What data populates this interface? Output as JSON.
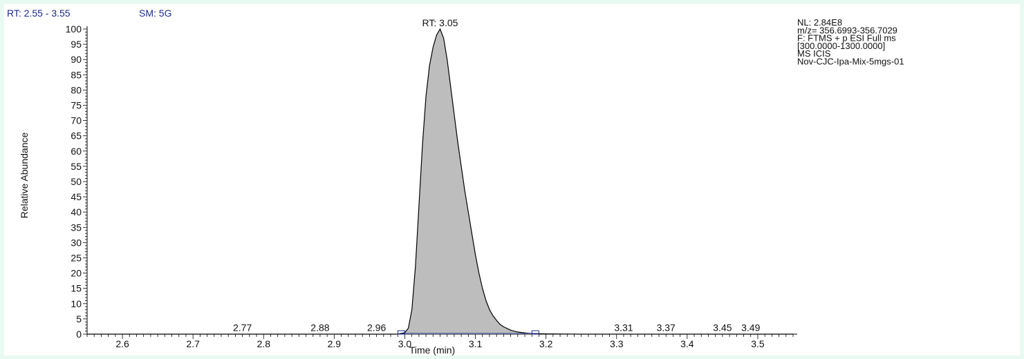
{
  "header": {
    "rt_range": "RT: 2.55 - 3.55",
    "smoothing": "SM: 5G"
  },
  "info": {
    "lines": [
      "NL: 2.84E8",
      "m/z= 356.6993-356.7029",
      "F: FTMS + p ESI Full ms",
      "[300.0000-1300.0000]",
      "MS  ICIS",
      "Nov-CJC-Ipa-Mix-5mgs-01"
    ]
  },
  "colors": {
    "peak_fill": "#bdbdbd",
    "trace": "#000000",
    "baseline_marker": "#1c2a8a",
    "background": "#e8faf2"
  },
  "chart_data": {
    "type": "area",
    "title": "",
    "xlabel": "Time (min)",
    "ylabel": "Relative Abundance",
    "xlim": [
      2.55,
      3.55
    ],
    "ylim": [
      0,
      100
    ],
    "x_ticks": [
      "2.6",
      "2.7",
      "2.8",
      "2.9",
      "3.0",
      "3.1",
      "3.2",
      "3.3",
      "3.4",
      "3.5"
    ],
    "y_ticks": [
      "0",
      "5",
      "10",
      "15",
      "20",
      "25",
      "30",
      "35",
      "40",
      "45",
      "50",
      "55",
      "60",
      "65",
      "70",
      "75",
      "80",
      "85",
      "90",
      "95",
      "100"
    ],
    "grid": false,
    "series": [
      {
        "values_x": [
          2.55,
          2.99,
          3.0,
          3.005,
          3.01,
          3.015,
          3.02,
          3.025,
          3.03,
          3.035,
          3.04,
          3.045,
          3.05,
          3.055,
          3.06,
          3.065,
          3.07,
          3.075,
          3.08,
          3.085,
          3.09,
          3.095,
          3.1,
          3.105,
          3.11,
          3.115,
          3.12,
          3.125,
          3.13,
          3.135,
          3.14,
          3.15,
          3.16,
          3.17,
          3.18,
          3.2,
          3.25,
          3.55
        ],
        "values_y": [
          0,
          0,
          0.5,
          2,
          8,
          22,
          42,
          62,
          78,
          88,
          94,
          98,
          100,
          97,
          90,
          81,
          72,
          63,
          55,
          47,
          40,
          33,
          26,
          20,
          15,
          11,
          8,
          6,
          4.5,
          3.2,
          2.4,
          1.3,
          0.7,
          0.4,
          0.2,
          0.1,
          0,
          0
        ]
      }
    ],
    "peak_labels": [
      {
        "x": 2.77,
        "y": 0.3,
        "text": "2.77"
      },
      {
        "x": 2.88,
        "y": 0.3,
        "text": "2.88"
      },
      {
        "x": 2.96,
        "y": 0.3,
        "text": "2.96"
      },
      {
        "x": 3.31,
        "y": 0.3,
        "text": "3.31"
      },
      {
        "x": 3.37,
        "y": 0.3,
        "text": "3.37"
      },
      {
        "x": 3.45,
        "y": 0.3,
        "text": "3.45"
      },
      {
        "x": 3.49,
        "y": 0.3,
        "text": "3.49"
      }
    ],
    "apex_label": {
      "x": 3.05,
      "y": 100,
      "text": "RT: 3.05"
    },
    "integration_markers": [
      {
        "x": 2.995,
        "y": 0
      },
      {
        "x": 3.185,
        "y": 0
      }
    ]
  }
}
